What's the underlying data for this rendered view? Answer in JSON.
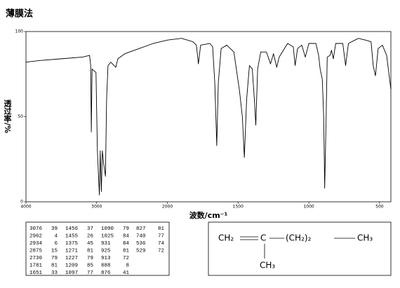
{
  "page_title": "薄膜法",
  "chart_data": {
    "type": "line",
    "x_label": "波数/cm⁻¹",
    "y_label": "透过率/%",
    "color": "#000000",
    "xlim": [
      4000,
      420
    ],
    "xticks": [
      4000,
      3000,
      2000,
      1500,
      1000,
      500
    ],
    "ylim": [
      0,
      100
    ],
    "yticks": [
      0,
      50,
      100
    ],
    "grid": false,
    "x": [
      4000,
      3800,
      3500,
      3200,
      3100,
      3085,
      3076,
      3065,
      3040,
      3010,
      2990,
      2962,
      2950,
      2934,
      2920,
      2900,
      2876,
      2860,
      2840,
      2800,
      2730,
      2700,
      2600,
      2400,
      2200,
      2000,
      1900,
      1820,
      1795,
      1781,
      1765,
      1700,
      1680,
      1665,
      1651,
      1640,
      1620,
      1580,
      1530,
      1490,
      1470,
      1456,
      1440,
      1420,
      1400,
      1385,
      1375,
      1362,
      1340,
      1300,
      1271,
      1250,
      1227,
      1210,
      1150,
      1110,
      1097,
      1080,
      1050,
      1025,
      1000,
      950,
      931,
      920,
      905,
      895,
      888,
      880,
      870,
      850,
      840,
      827,
      810,
      760,
      740,
      720,
      650,
      600,
      560,
      545,
      529,
      510,
      480,
      450,
      420
    ],
    "values": [
      82,
      83,
      84,
      85,
      86,
      80,
      41,
      78,
      77,
      76,
      30,
      4,
      30,
      6,
      30,
      22,
      15,
      60,
      80,
      82,
      79,
      84,
      87,
      90,
      93,
      95,
      96,
      94,
      92,
      81,
      92,
      93,
      91,
      70,
      33,
      70,
      90,
      92,
      88,
      65,
      50,
      26,
      60,
      80,
      78,
      60,
      45,
      78,
      88,
      88,
      81,
      87,
      79,
      85,
      93,
      91,
      80,
      90,
      92,
      85,
      93,
      93,
      86,
      78,
      72,
      50,
      8,
      40,
      85,
      86,
      89,
      84,
      93,
      93,
      80,
      93,
      96,
      95,
      94,
      80,
      74,
      90,
      92,
      86,
      66
    ]
  },
  "peak_table": {
    "columns": [
      [
        [
          3076,
          39
        ],
        [
          2962,
          4
        ],
        [
          2934,
          6
        ],
        [
          2875,
          15
        ],
        [
          2730,
          79
        ],
        [
          1781,
          81
        ],
        [
          1651,
          33
        ]
      ],
      [
        [
          1456,
          37
        ],
        [
          1455,
          26
        ],
        [
          1375,
          45
        ],
        [
          1271,
          81
        ],
        [
          1227,
          79
        ],
        [
          1209,
          85
        ],
        [
          1097,
          77
        ]
      ],
      [
        [
          1090,
          79
        ],
        [
          1025,
          84
        ],
        [
          931,
          84
        ],
        [
          925,
          81
        ],
        [
          913,
          72
        ],
        [
          888,
          8
        ],
        [
          876,
          41
        ]
      ],
      [
        [
          827,
          81
        ],
        [
          740,
          77
        ],
        [
          536,
          74
        ],
        [
          529,
          72
        ]
      ]
    ]
  },
  "structure": {
    "left": "CH₂",
    "center": "C",
    "chain": "(CH₂)₂",
    "right": "CH₃",
    "branch": "CH₃"
  }
}
